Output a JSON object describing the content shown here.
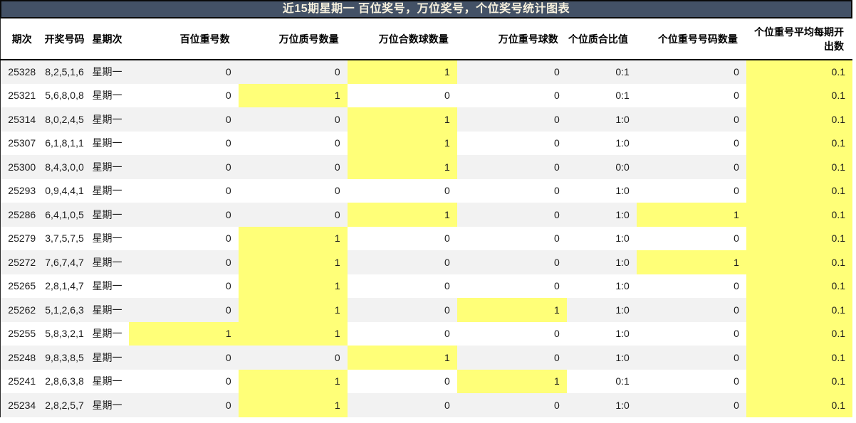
{
  "chart_data": {
    "type": "table",
    "title": "近15期星期一 百位奖号，万位奖号，个位奖号统计图表",
    "columns": [
      {
        "label": "期次",
        "align": "center"
      },
      {
        "label": "开奖号码",
        "align": "center"
      },
      {
        "label": "星期次",
        "align": "center"
      },
      {
        "label": "百位重号数",
        "align": "right"
      },
      {
        "label": "万位质号数量",
        "align": "right"
      },
      {
        "label": "万位合数球数量",
        "align": "right"
      },
      {
        "label": "万位重号球数",
        "align": "right"
      },
      {
        "label": "个位质合比值",
        "align": "right"
      },
      {
        "label": "个位重号号码数量",
        "align": "right"
      },
      {
        "label": "个位重号平均每期开出数",
        "align": "right"
      }
    ],
    "rows": [
      {
        "cells": [
          "25328",
          "8,2,5,1,6",
          "星期一",
          "0",
          "0",
          "1",
          "0",
          "0:1",
          "0",
          "0.1"
        ],
        "highlights": [
          5,
          9
        ]
      },
      {
        "cells": [
          "25321",
          "5,6,8,0,8",
          "星期一",
          "0",
          "1",
          "0",
          "0",
          "0:1",
          "0",
          "0.1"
        ],
        "highlights": [
          4,
          9
        ]
      },
      {
        "cells": [
          "25314",
          "8,0,2,4,5",
          "星期一",
          "0",
          "0",
          "1",
          "0",
          "1:0",
          "0",
          "0.1"
        ],
        "highlights": [
          5,
          9
        ]
      },
      {
        "cells": [
          "25307",
          "6,1,8,1,1",
          "星期一",
          "0",
          "0",
          "1",
          "0",
          "1:0",
          "0",
          "0.1"
        ],
        "highlights": [
          5,
          9
        ]
      },
      {
        "cells": [
          "25300",
          "8,4,3,0,0",
          "星期一",
          "0",
          "0",
          "1",
          "0",
          "0:0",
          "0",
          "0.1"
        ],
        "highlights": [
          5,
          9
        ]
      },
      {
        "cells": [
          "25293",
          "0,9,4,4,1",
          "星期一",
          "0",
          "0",
          "0",
          "0",
          "1:0",
          "0",
          "0.1"
        ],
        "highlights": [
          9
        ]
      },
      {
        "cells": [
          "25286",
          "6,4,1,0,5",
          "星期一",
          "0",
          "0",
          "1",
          "0",
          "1:0",
          "1",
          "0.1"
        ],
        "highlights": [
          5,
          8,
          9
        ]
      },
      {
        "cells": [
          "25279",
          "3,7,5,7,5",
          "星期一",
          "0",
          "1",
          "0",
          "0",
          "1:0",
          "0",
          "0.1"
        ],
        "highlights": [
          4,
          9
        ]
      },
      {
        "cells": [
          "25272",
          "7,6,7,4,7",
          "星期一",
          "0",
          "1",
          "0",
          "0",
          "1:0",
          "1",
          "0.1"
        ],
        "highlights": [
          4,
          8,
          9
        ]
      },
      {
        "cells": [
          "25265",
          "2,8,1,4,7",
          "星期一",
          "0",
          "1",
          "0",
          "0",
          "1:0",
          "0",
          "0.1"
        ],
        "highlights": [
          4,
          9
        ]
      },
      {
        "cells": [
          "25262",
          "5,1,2,6,3",
          "星期一",
          "0",
          "1",
          "0",
          "1",
          "1:0",
          "0",
          "0.1"
        ],
        "highlights": [
          4,
          6,
          9
        ]
      },
      {
        "cells": [
          "25255",
          "5,8,3,2,1",
          "星期一",
          "1",
          "1",
          "0",
          "0",
          "1:0",
          "0",
          "0.1"
        ],
        "highlights": [
          3,
          4,
          9
        ]
      },
      {
        "cells": [
          "25248",
          "9,8,3,8,5",
          "星期一",
          "0",
          "0",
          "1",
          "0",
          "1:0",
          "0",
          "0.1"
        ],
        "highlights": [
          5,
          9
        ]
      },
      {
        "cells": [
          "25241",
          "2,8,6,3,8",
          "星期一",
          "0",
          "1",
          "0",
          "1",
          "0:1",
          "0",
          "0.1"
        ],
        "highlights": [
          4,
          6,
          9
        ]
      },
      {
        "cells": [
          "25234",
          "2,8,2,5,7",
          "星期一",
          "0",
          "1",
          "0",
          "0",
          "1:0",
          "0",
          "0.1"
        ],
        "highlights": [
          4,
          9
        ]
      }
    ]
  },
  "colors": {
    "title_bg": "#435166",
    "title_text": "#f6f0dd",
    "highlight": "#ffff78",
    "stripe": "#f2f2f2"
  }
}
